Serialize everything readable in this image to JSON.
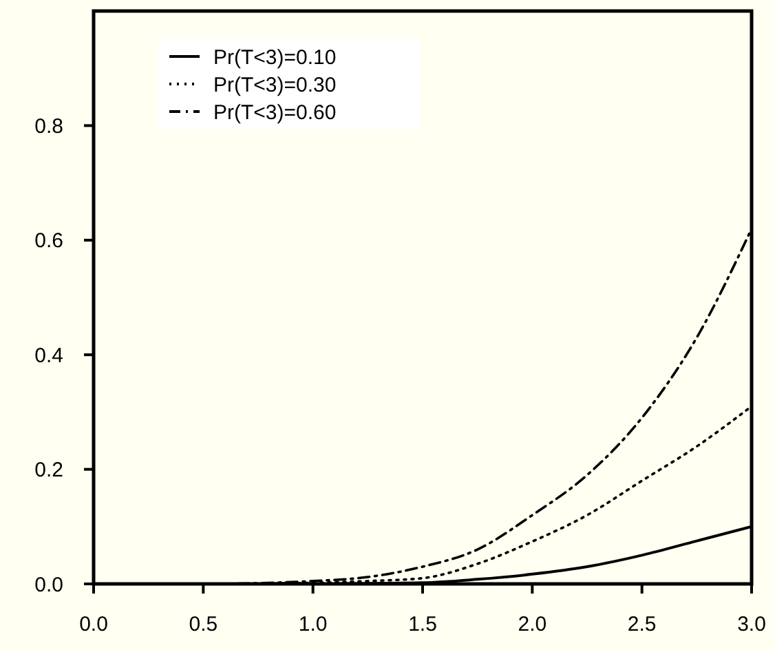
{
  "chart_data": {
    "type": "line",
    "x": [
      0,
      0.5,
      1,
      1.25,
      1.5,
      1.75,
      2,
      2.25,
      2.5,
      2.75,
      3
    ],
    "xlim": [
      0,
      3
    ],
    "xticks": [
      {
        "value": 0,
        "label": "0.0"
      },
      {
        "value": 0.5,
        "label": "0.5"
      },
      {
        "value": 1,
        "label": "1.0"
      },
      {
        "value": 1.5,
        "label": "1.5"
      },
      {
        "value": 2,
        "label": "2.0"
      },
      {
        "value": 2.5,
        "label": "2.5"
      },
      {
        "value": 3,
        "label": "3.0"
      }
    ],
    "ylim": [
      0,
      1
    ],
    "yticks": [
      {
        "value": 0,
        "label": "0.0"
      },
      {
        "value": 0.2,
        "label": "0.2"
      },
      {
        "value": 0.4,
        "label": "0.4"
      },
      {
        "value": 0.6,
        "label": "0.6"
      },
      {
        "value": 0.8,
        "label": "0.8"
      }
    ],
    "grid": false,
    "legend": "top left",
    "marker": "none",
    "series": [
      {
        "name": "Pr(T<3)=0.10",
        "color": "#000000",
        "line_style": "solid",
        "values": [
          0,
          0,
          0,
          0.001,
          0.002,
          0.008,
          0.017,
          0.03,
          0.05,
          0.075,
          0.1
        ]
      },
      {
        "name": "Pr(T<3)=0.30",
        "color": "#000000",
        "line_style": "dotted",
        "values": [
          0,
          0,
          0.002,
          0.005,
          0.01,
          0.035,
          0.074,
          0.12,
          0.18,
          0.24,
          0.31
        ]
      },
      {
        "name": "Pr(T<3)=0.60",
        "color": "#000000",
        "line_style": "dashdot",
        "values": [
          0,
          0,
          0.005,
          0.012,
          0.03,
          0.06,
          0.12,
          0.19,
          0.29,
          0.43,
          0.62
        ]
      }
    ]
  }
}
